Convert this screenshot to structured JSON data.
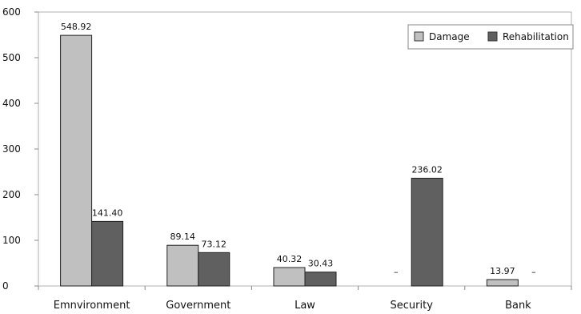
{
  "chart_data": {
    "type": "bar",
    "categories": [
      "Emnvironment",
      "Government",
      "Law",
      "Security",
      "Bank"
    ],
    "series": [
      {
        "name": "Damage",
        "color": "#c0c0c0",
        "values": [
          548.92,
          89.14,
          40.32,
          null,
          13.97
        ],
        "labels": [
          "548.92",
          "89.14",
          "40.32",
          "–",
          "13.97"
        ]
      },
      {
        "name": "Rehabilitation",
        "color": "#606060",
        "values": [
          141.4,
          73.12,
          30.43,
          236.02,
          null
        ],
        "labels": [
          "141.40",
          "73.12",
          "30.43",
          "236.02",
          "–"
        ]
      }
    ],
    "ylim": [
      0,
      600
    ],
    "yticks": [
      0,
      100,
      200,
      300,
      400,
      500,
      600
    ],
    "grid": false,
    "legend_position": "top-right",
    "title": "",
    "xlabel": "",
    "ylabel": ""
  }
}
